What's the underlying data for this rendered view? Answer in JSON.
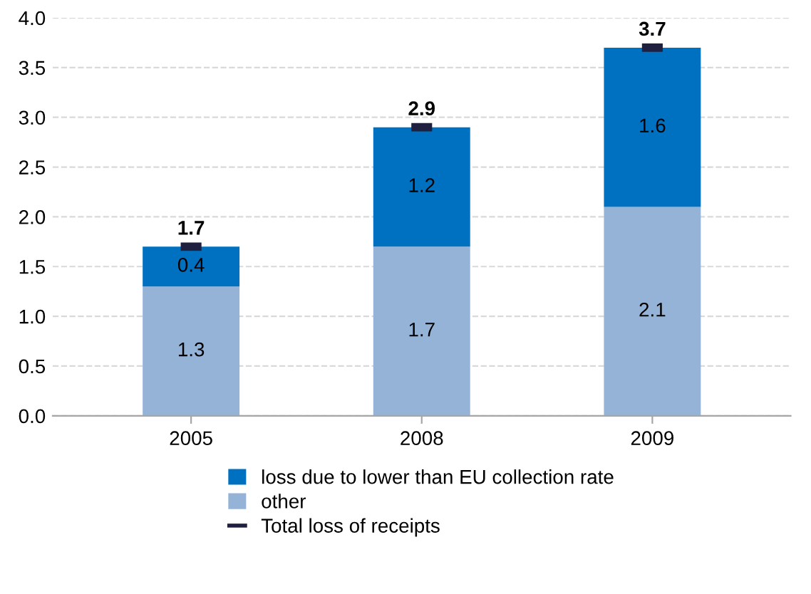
{
  "chart_data": {
    "type": "bar",
    "stacked": true,
    "categories": [
      "2005",
      "2008",
      "2009"
    ],
    "series": [
      {
        "name": "other",
        "color": "#95b3d7",
        "values": [
          1.3,
          1.7,
          2.1
        ]
      },
      {
        "name": "loss due to lower than EU collection rate",
        "color": "#0070c0",
        "values": [
          0.4,
          1.2,
          1.6
        ]
      },
      {
        "name": "Total loss of receipts",
        "type": "scatter",
        "color": "#1f1f3f",
        "values": [
          1.7,
          2.9,
          3.7
        ]
      }
    ],
    "data_labels": true,
    "ylim": [
      0,
      4.0
    ],
    "yticks": [
      {
        "value": 0,
        "label": "0.0"
      },
      {
        "value": 0.5,
        "label": "0.5"
      },
      {
        "value": 1.0,
        "label": "1.0"
      },
      {
        "value": 1.5,
        "label": "1.5"
      },
      {
        "value": 2.0,
        "label": "2.0"
      },
      {
        "value": 2.5,
        "label": "2.5"
      },
      {
        "value": 3.0,
        "label": "3.0"
      },
      {
        "value": 3.5,
        "label": "3.5"
      },
      {
        "value": 4.0,
        "label": "4.0"
      }
    ],
    "grid": "y",
    "legend": "bottom"
  }
}
